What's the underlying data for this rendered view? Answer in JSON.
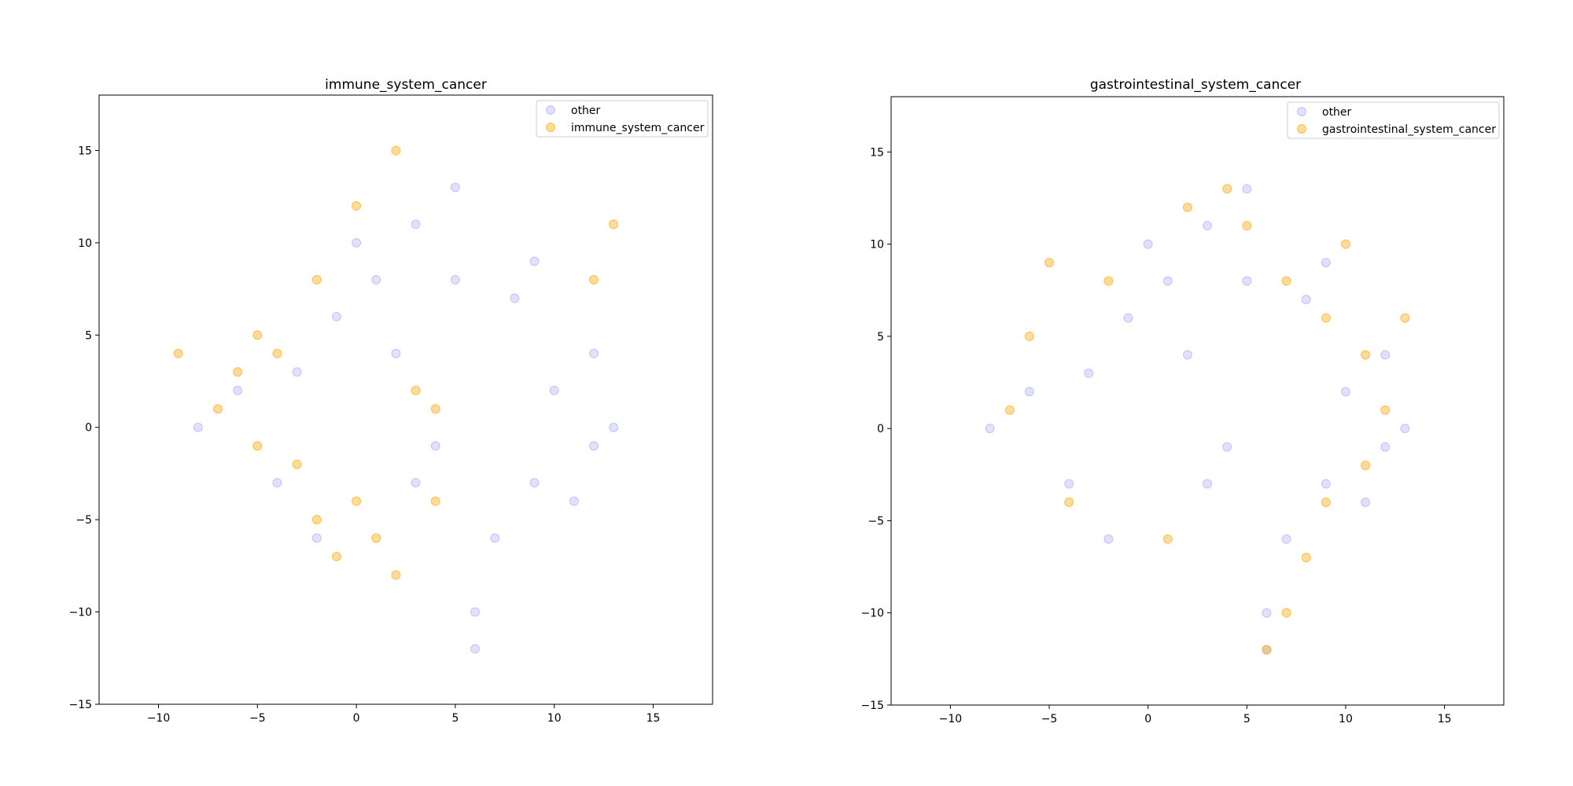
{
  "chart_data": [
    {
      "type": "scatter",
      "title": "immune_system_cancer",
      "xlabel": "",
      "ylabel": "",
      "xlim": [
        -13,
        18
      ],
      "ylim": [
        -15,
        18
      ],
      "xticks": [
        -10,
        -5,
        0,
        5,
        10,
        15
      ],
      "xtick_labels": [
        "−10",
        "−5",
        "0",
        "5",
        "10",
        "15"
      ],
      "yticks": [
        -15,
        -10,
        -5,
        0,
        5,
        10,
        15
      ],
      "ytick_labels": [
        "−15",
        "−10",
        "−5",
        "0",
        "5",
        "10",
        "15"
      ],
      "grid": false,
      "legend_position": "upper-right",
      "series": [
        {
          "name": "other",
          "color": "#0000ff",
          "alpha": 0.12,
          "values": [
            [
              -6,
              2
            ],
            [
              -4,
              -3
            ],
            [
              -2,
              -6
            ],
            [
              1,
              8
            ],
            [
              3,
              11
            ],
            [
              5,
              13
            ],
            [
              8,
              7
            ],
            [
              10,
              2
            ],
            [
              12,
              -1
            ],
            [
              9,
              -3
            ],
            [
              7,
              -6
            ],
            [
              6,
              -10
            ],
            [
              6,
              -12
            ],
            [
              3,
              -3
            ],
            [
              -8,
              0
            ],
            [
              -3,
              3
            ],
            [
              2,
              4
            ],
            [
              11,
              -4
            ],
            [
              13,
              0
            ],
            [
              12,
              4
            ],
            [
              5,
              8
            ],
            [
              0,
              10
            ],
            [
              -1,
              6
            ],
            [
              4,
              -1
            ],
            [
              9,
              9
            ]
          ]
        },
        {
          "name": "immune_system_cancer",
          "color": "#ffa500",
          "alpha": 0.4,
          "values": [
            [
              -7,
              1
            ],
            [
              -5,
              -1
            ],
            [
              -6,
              3
            ],
            [
              -3,
              -2
            ],
            [
              -2,
              -5
            ],
            [
              -1,
              -7
            ],
            [
              1,
              -6
            ],
            [
              -4,
              4
            ],
            [
              -2,
              8
            ],
            [
              0,
              12
            ],
            [
              3,
              2
            ],
            [
              4,
              -4
            ],
            [
              12,
              8
            ],
            [
              13,
              11
            ],
            [
              -9,
              4
            ],
            [
              2,
              -8
            ],
            [
              0,
              -4
            ],
            [
              -5,
              5
            ],
            [
              4,
              1
            ],
            [
              2,
              15
            ]
          ]
        }
      ]
    },
    {
      "type": "scatter",
      "title": "gastrointestinal_system_cancer",
      "xlabel": "",
      "ylabel": "",
      "xlim": [
        -13,
        18
      ],
      "ylim": [
        -15,
        18
      ],
      "xticks": [
        -10,
        -5,
        0,
        5,
        10,
        15
      ],
      "xtick_labels": [
        "−10",
        "−5",
        "0",
        "5",
        "10",
        "15"
      ],
      "yticks": [
        -15,
        -10,
        -5,
        0,
        5,
        10,
        15
      ],
      "ytick_labels": [
        "−15",
        "−10",
        "−5",
        "0",
        "5",
        "10",
        "15"
      ],
      "grid": false,
      "legend_position": "upper-right",
      "series": [
        {
          "name": "other",
          "color": "#0000ff",
          "alpha": 0.12,
          "values": [
            [
              -6,
              2
            ],
            [
              -4,
              -3
            ],
            [
              -2,
              -6
            ],
            [
              1,
              8
            ],
            [
              3,
              11
            ],
            [
              5,
              13
            ],
            [
              8,
              7
            ],
            [
              10,
              2
            ],
            [
              12,
              -1
            ],
            [
              9,
              -3
            ],
            [
              7,
              -6
            ],
            [
              6,
              -10
            ],
            [
              6,
              -12
            ],
            [
              3,
              -3
            ],
            [
              -8,
              0
            ],
            [
              -3,
              3
            ],
            [
              2,
              4
            ],
            [
              11,
              -4
            ],
            [
              13,
              0
            ],
            [
              12,
              4
            ],
            [
              5,
              8
            ],
            [
              0,
              10
            ],
            [
              -1,
              6
            ],
            [
              4,
              -1
            ],
            [
              9,
              9
            ]
          ]
        },
        {
          "name": "gastrointestinal_system_cancer",
          "color": "#ffa500",
          "alpha": 0.4,
          "values": [
            [
              7,
              -10
            ],
            [
              6,
              -12
            ],
            [
              8,
              -7
            ],
            [
              9,
              -4
            ],
            [
              11,
              -2
            ],
            [
              12,
              1
            ],
            [
              11,
              4
            ],
            [
              9,
              6
            ],
            [
              7,
              8
            ],
            [
              5,
              11
            ],
            [
              4,
              13
            ],
            [
              -2,
              8
            ],
            [
              -6,
              5
            ],
            [
              -7,
              1
            ],
            [
              -4,
              -4
            ],
            [
              1,
              -6
            ],
            [
              2,
              12
            ],
            [
              10,
              10
            ],
            [
              13,
              6
            ],
            [
              -5,
              9
            ]
          ]
        }
      ]
    }
  ]
}
